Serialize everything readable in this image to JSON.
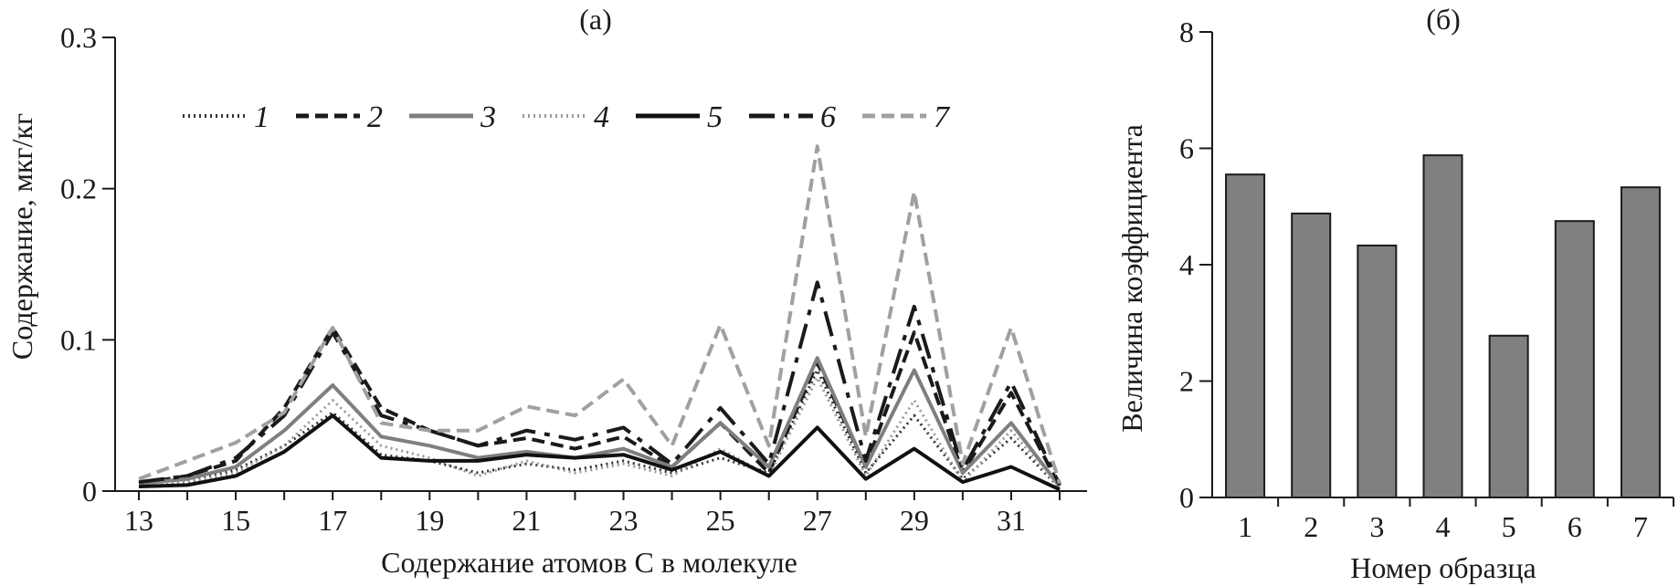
{
  "chart_data": [
    {
      "type": "line",
      "title": "(а)",
      "xlabel": "Содержание атомов С в молекуле",
      "ylabel": "Содержание, мкг/кг",
      "xlim": [
        13,
        32
      ],
      "ylim": [
        0,
        0.3
      ],
      "x_ticks": [
        13,
        15,
        17,
        19,
        21,
        23,
        25,
        27,
        29,
        31
      ],
      "x_tick_labels": [
        "13",
        "15",
        "17",
        "19",
        "21",
        "23",
        "25",
        "27",
        "29",
        "31"
      ],
      "y_ticks": [
        0,
        0.1,
        0.2,
        0.3
      ],
      "y_tick_labels": [
        "0",
        "0.1",
        "0.2",
        "0.3"
      ],
      "grid": false,
      "legend_position": "top",
      "x": [
        13,
        14,
        15,
        16,
        17,
        18,
        19,
        20,
        21,
        22,
        23,
        24,
        25,
        26,
        27,
        28,
        29,
        30,
        31,
        32
      ],
      "series": [
        {
          "name": "1",
          "color": "#333333",
          "dash": "dotted",
          "values": [
            0.004,
            0.006,
            0.014,
            0.03,
            0.052,
            0.024,
            0.02,
            0.012,
            0.018,
            0.014,
            0.02,
            0.012,
            0.022,
            0.012,
            0.08,
            0.012,
            0.05,
            0.008,
            0.035,
            0.002
          ]
        },
        {
          "name": "2",
          "color": "#1a1a1a",
          "dash": "dashed",
          "values": [
            0.005,
            0.01,
            0.02,
            0.055,
            0.108,
            0.055,
            0.04,
            0.03,
            0.035,
            0.028,
            0.036,
            0.016,
            0.045,
            0.012,
            0.085,
            0.016,
            0.105,
            0.012,
            0.065,
            0.003
          ]
        },
        {
          "name": "3",
          "color": "#7f7f7f",
          "dash": "solid",
          "values": [
            0.005,
            0.008,
            0.016,
            0.04,
            0.07,
            0.036,
            0.03,
            0.022,
            0.026,
            0.022,
            0.028,
            0.016,
            0.045,
            0.016,
            0.088,
            0.016,
            0.08,
            0.012,
            0.045,
            0.003
          ]
        },
        {
          "name": "4",
          "color": "#9a9a9a",
          "dash": "dotted",
          "values": [
            0.004,
            0.006,
            0.012,
            0.03,
            0.06,
            0.03,
            0.022,
            0.01,
            0.02,
            0.012,
            0.018,
            0.01,
            0.028,
            0.01,
            0.075,
            0.01,
            0.06,
            0.006,
            0.04,
            0.002
          ]
        },
        {
          "name": "5",
          "color": "#111111",
          "dash": "solid-thick",
          "values": [
            0.003,
            0.004,
            0.01,
            0.026,
            0.05,
            0.022,
            0.02,
            0.02,
            0.024,
            0.022,
            0.024,
            0.014,
            0.026,
            0.01,
            0.042,
            0.008,
            0.028,
            0.006,
            0.016,
            0.001
          ]
        },
        {
          "name": "6",
          "color": "#1a1a1a",
          "dash": "long-dash",
          "values": [
            0.006,
            0.01,
            0.022,
            0.05,
            0.105,
            0.05,
            0.04,
            0.03,
            0.04,
            0.034,
            0.042,
            0.018,
            0.055,
            0.018,
            0.138,
            0.02,
            0.122,
            0.014,
            0.072,
            0.004
          ]
        },
        {
          "name": "7",
          "color": "#a0a0a0",
          "dash": "dashed",
          "values": [
            0.008,
            0.02,
            0.032,
            0.052,
            0.108,
            0.045,
            0.04,
            0.04,
            0.056,
            0.05,
            0.074,
            0.03,
            0.11,
            0.03,
            0.228,
            0.036,
            0.198,
            0.018,
            0.108,
            0.005
          ]
        }
      ]
    },
    {
      "type": "bar",
      "title": "(б)",
      "xlabel": "Номер образца",
      "ylabel": "Величина коэффициента",
      "categories": [
        "1",
        "2",
        "3",
        "4",
        "5",
        "6",
        "7"
      ],
      "values": [
        5.55,
        4.88,
        4.33,
        5.88,
        2.78,
        4.75,
        5.33
      ],
      "ylim": [
        0,
        8
      ],
      "y_ticks": [
        0,
        2,
        4,
        6,
        8
      ],
      "y_tick_labels": [
        "0",
        "2",
        "4",
        "6",
        "8"
      ],
      "bar_color": "#808080",
      "bar_edge_color": "#1a1a1a",
      "grid": false
    }
  ]
}
